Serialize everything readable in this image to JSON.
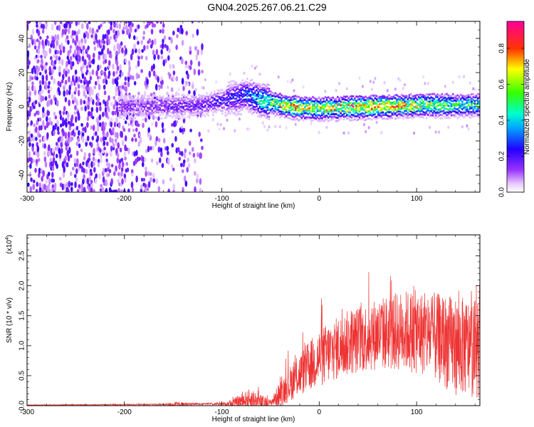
{
  "title": "GN04.2025.267.06.21.C29",
  "chart_data": [
    {
      "type": "heatmap",
      "xlabel": "Height of straight line (km)",
      "ylabel": "Frequency (Hz)",
      "xlim": [
        -300,
        165
      ],
      "ylim": [
        -50,
        50
      ],
      "xticks": [
        -300,
        -200,
        -100,
        0,
        100
      ],
      "yticks": [
        -40,
        -20,
        0,
        20,
        40
      ],
      "colorbar": {
        "label": "Normalized spectral amplitude",
        "range": [
          0,
          0.95
        ],
        "ticks": [
          "0.0",
          "0.2",
          "0.4",
          "0.6",
          "0.8"
        ],
        "colormap": "rainbow (white-violet-blue-cyan-green-yellow-red-magenta)"
      },
      "features": {
        "noise_region_x": [
          -300,
          -120
        ],
        "signal_ridge": [
          {
            "x": -200,
            "freq": 0,
            "amp": 0.15
          },
          {
            "x": -120,
            "freq": 1,
            "amp": 0.2
          },
          {
            "x": -75,
            "freq": 7,
            "amp": 0.3
          },
          {
            "x": -60,
            "freq": 4,
            "amp": 0.5
          },
          {
            "x": -30,
            "freq": 0,
            "amp": 0.8
          },
          {
            "x": 0,
            "freq": -1,
            "amp": 0.7
          },
          {
            "x": 50,
            "freq": 0,
            "amp": 0.85
          },
          {
            "x": 100,
            "freq": 1,
            "amp": 0.7
          },
          {
            "x": 160,
            "freq": 1,
            "amp": 0.5
          }
        ]
      }
    },
    {
      "type": "line",
      "xlabel": "Height of straight line (km)",
      "ylabel": "SNR (10 * v/v)",
      "yscale_label": "(x10",
      "yscale_exp": "4",
      "xlim": [
        -300,
        165
      ],
      "ylim": [
        0,
        2.85
      ],
      "xticks": [
        -300,
        -200,
        -100,
        0,
        100
      ],
      "yticks": [
        "0.0",
        "0.5",
        "1.0",
        "1.5",
        "2.0",
        "2.5"
      ],
      "series": [
        {
          "color": "#ee3333",
          "envelope": [
            {
              "x": -300,
              "base": 0.01,
              "spread": 0.01
            },
            {
              "x": -160,
              "base": 0.02,
              "spread": 0.02
            },
            {
              "x": -148,
              "base": 0.02,
              "spread": 0.08
            },
            {
              "x": -120,
              "base": 0.03,
              "spread": 0.02
            },
            {
              "x": -95,
              "base": 0.03,
              "spread": 0.05
            },
            {
              "x": -80,
              "base": 0.08,
              "spread": 0.2
            },
            {
              "x": -70,
              "base": 0.1,
              "spread": 0.35
            },
            {
              "x": -60,
              "base": 0.05,
              "spread": 0.25
            },
            {
              "x": -50,
              "base": 0.05,
              "spread": 0.08
            },
            {
              "x": -40,
              "base": 0.2,
              "spread": 0.4
            },
            {
              "x": -25,
              "base": 0.45,
              "spread": 0.6
            },
            {
              "x": 0,
              "base": 0.8,
              "spread": 0.9
            },
            {
              "x": 30,
              "base": 1.05,
              "spread": 1.0
            },
            {
              "x": 60,
              "base": 1.2,
              "spread": 1.1
            },
            {
              "x": 90,
              "base": 1.25,
              "spread": 1.25
            },
            {
              "x": 110,
              "base": 1.2,
              "spread": 1.3
            },
            {
              "x": 140,
              "base": 1.0,
              "spread": 1.5
            },
            {
              "x": 165,
              "base": 0.95,
              "spread": 1.5
            }
          ]
        }
      ]
    }
  ]
}
